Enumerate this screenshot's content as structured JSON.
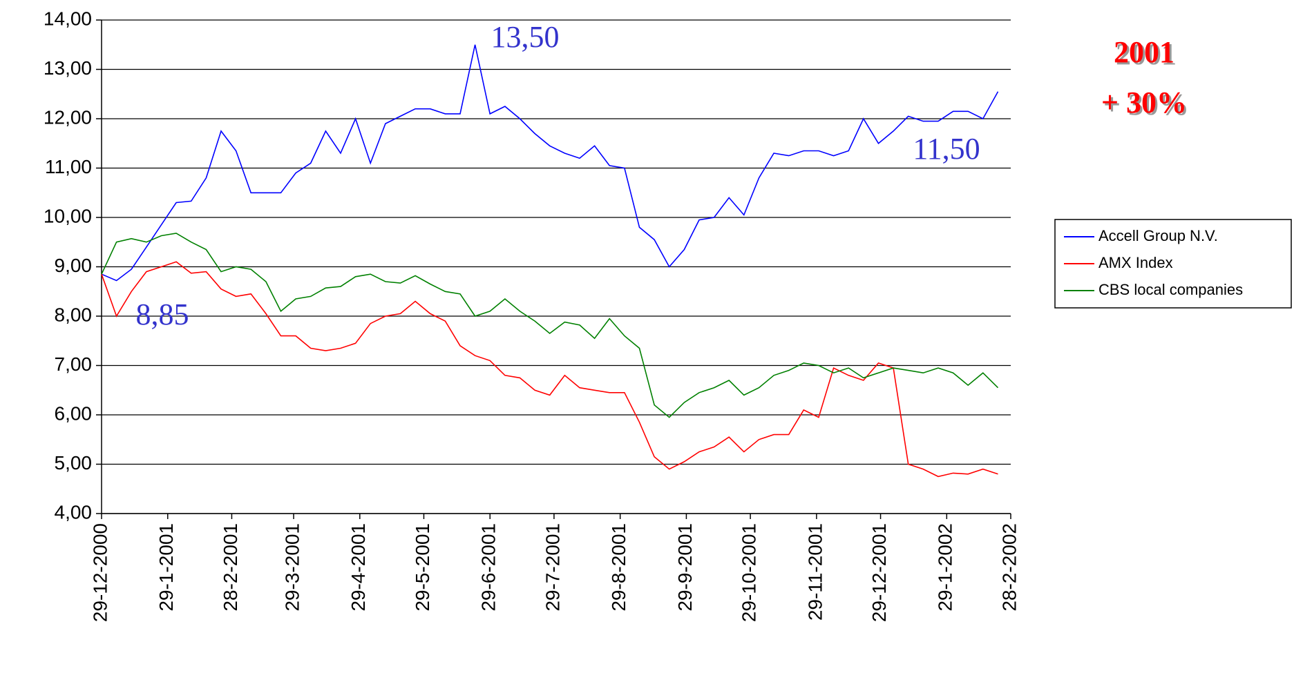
{
  "chart_data": {
    "type": "line",
    "x": [
      "29-12-2000",
      "5-1-2001",
      "12-1-2001",
      "19-1-2001",
      "26-1-2001",
      "2-2-2001",
      "9-2-2001",
      "16-2-2001",
      "23-2-2001",
      "2-3-2001",
      "9-3-2001",
      "16-3-2001",
      "23-3-2001",
      "30-3-2001",
      "6-4-2001",
      "13-4-2001",
      "20-4-2001",
      "27-4-2001",
      "4-5-2001",
      "11-5-2001",
      "18-5-2001",
      "25-5-2001",
      "1-6-2001",
      "8-6-2001",
      "15-6-2001",
      "22-6-2001",
      "29-6-2001",
      "6-7-2001",
      "13-7-2001",
      "20-7-2001",
      "27-7-2001",
      "3-8-2001",
      "10-8-2001",
      "17-8-2001",
      "24-8-2001",
      "31-8-2001",
      "7-9-2001",
      "14-9-2001",
      "21-9-2001",
      "28-9-2001",
      "5-10-2001",
      "12-10-2001",
      "19-10-2001",
      "26-10-2001",
      "2-11-2001",
      "9-11-2001",
      "16-11-2001",
      "23-11-2001",
      "30-11-2001",
      "7-12-2001",
      "14-12-2001",
      "21-12-2001",
      "28-12-2001",
      "4-1-2002",
      "11-1-2002",
      "18-1-2002",
      "25-1-2002",
      "1-2-2002",
      "8-2-2002",
      "15-2-2002",
      "22-2-2002"
    ],
    "series": [
      {
        "name": "Accell Group N.V.",
        "color": "#0000ff",
        "values": [
          8.85,
          8.72,
          8.95,
          9.4,
          9.85,
          10.3,
          10.33,
          10.8,
          11.75,
          11.35,
          10.5,
          10.5,
          10.5,
          10.9,
          11.1,
          11.75,
          11.3,
          12.0,
          11.1,
          11.9,
          12.05,
          12.2,
          12.2,
          12.1,
          12.1,
          13.5,
          12.1,
          12.25,
          12.0,
          11.7,
          11.45,
          11.3,
          11.2,
          11.45,
          11.05,
          11.0,
          9.8,
          9.55,
          9.0,
          9.35,
          9.95,
          10.0,
          10.4,
          10.05,
          10.8,
          11.3,
          11.25,
          11.35,
          11.35,
          11.25,
          11.35,
          12.0,
          11.5,
          11.75,
          12.05,
          11.95,
          11.95,
          12.15,
          12.15,
          12.0,
          12.55
        ]
      },
      {
        "name": "AMX Index",
        "color": "#ff0000",
        "values": [
          8.85,
          8.0,
          8.5,
          8.9,
          9.0,
          9.1,
          8.87,
          8.9,
          8.55,
          8.4,
          8.45,
          8.05,
          7.6,
          7.6,
          7.35,
          7.3,
          7.35,
          7.45,
          7.85,
          8.0,
          8.05,
          8.3,
          8.05,
          7.9,
          7.4,
          7.2,
          7.1,
          6.8,
          6.75,
          6.5,
          6.4,
          6.8,
          6.55,
          6.5,
          6.45,
          6.45,
          5.85,
          5.15,
          4.9,
          5.05,
          5.25,
          5.35,
          5.55,
          5.25,
          5.5,
          5.6,
          5.6,
          6.1,
          5.95,
          6.95,
          6.8,
          6.7,
          7.05,
          6.95,
          5.0,
          4.9,
          4.75,
          4.82,
          4.8,
          4.9,
          4.8
        ]
      },
      {
        "name": "CBS local companies",
        "color": "#008000",
        "values": [
          8.85,
          9.5,
          9.57,
          9.5,
          9.63,
          9.68,
          9.5,
          9.35,
          8.9,
          9.0,
          8.95,
          8.7,
          8.1,
          8.35,
          8.4,
          8.57,
          8.6,
          8.8,
          8.85,
          8.7,
          8.67,
          8.82,
          8.65,
          8.5,
          8.45,
          8.0,
          8.1,
          8.35,
          8.1,
          7.9,
          7.65,
          7.88,
          7.82,
          7.55,
          7.95,
          7.6,
          7.35,
          6.2,
          5.95,
          6.25,
          6.45,
          6.55,
          6.7,
          6.4,
          6.55,
          6.8,
          6.9,
          7.05,
          7.0,
          6.85,
          6.95,
          6.75,
          6.85,
          6.95,
          6.9,
          6.85,
          6.95,
          6.85,
          6.6,
          6.85,
          6.55
        ]
      }
    ],
    "xlim": [
      "29-12-2000",
      "28-2-2002"
    ],
    "xticks": [
      "29-12-2000",
      "29-1-2001",
      "28-2-2001",
      "29-3-2001",
      "29-4-2001",
      "29-5-2001",
      "29-6-2001",
      "29-7-2001",
      "29-8-2001",
      "29-9-2001",
      "29-10-2001",
      "29-11-2001",
      "29-12-2001",
      "29-1-2002",
      "28-2-2002"
    ],
    "ylim": [
      4,
      14
    ],
    "yticks": [
      {
        "value": 4,
        "label": "4,00"
      },
      {
        "value": 5,
        "label": "5,00"
      },
      {
        "value": 6,
        "label": "6,00"
      },
      {
        "value": 7,
        "label": "7,00"
      },
      {
        "value": 8,
        "label": "8,00"
      },
      {
        "value": 9,
        "label": "9,00"
      },
      {
        "value": 10,
        "label": "10,00"
      },
      {
        "value": 11,
        "label": "11,00"
      },
      {
        "value": 12,
        "label": "12,00"
      },
      {
        "value": 13,
        "label": "13,00"
      },
      {
        "value": 14,
        "label": "14,00"
      }
    ],
    "grid": true,
    "legend": "right",
    "annotations": [
      "13,50",
      "8,85",
      "11,50"
    ],
    "headline": [
      "2001",
      "+ 30%"
    ]
  }
}
